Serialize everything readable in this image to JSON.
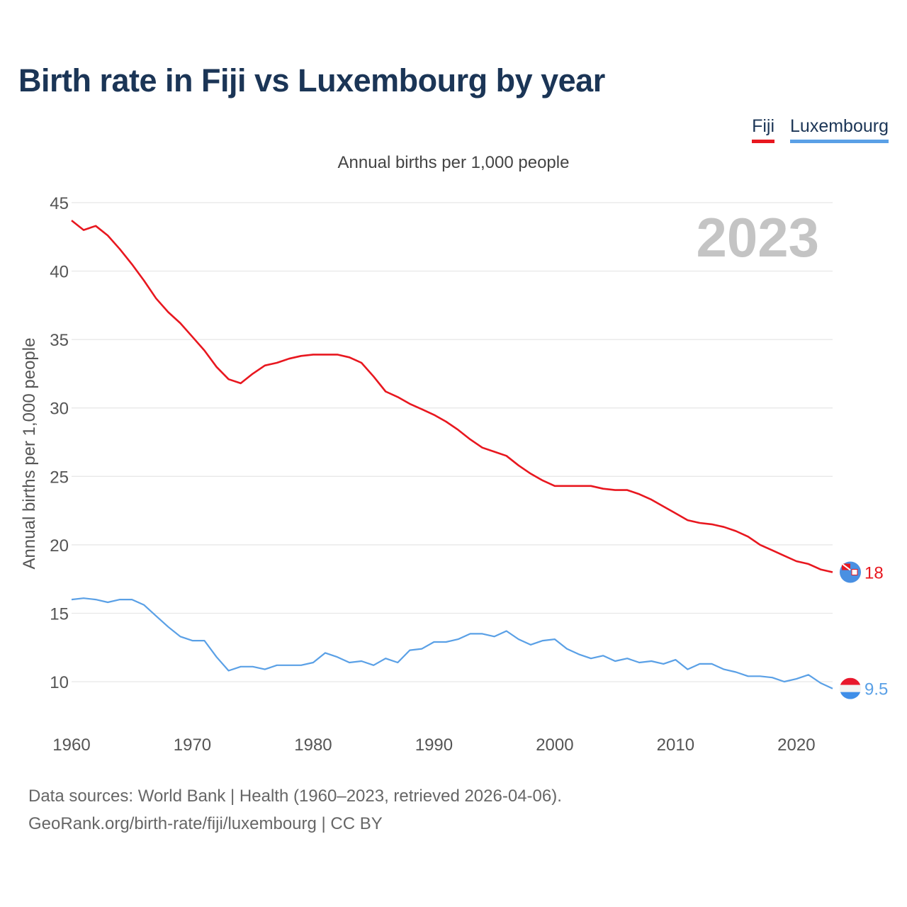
{
  "title": "Birth rate in Fiji vs Luxembourg by year",
  "subtitle": "Annual births per 1,000 people",
  "current_year": "2023",
  "legend": [
    {
      "label": "Fiji",
      "color": "#e8171f"
    },
    {
      "label": "Luxembourg",
      "color": "#5aa0e6"
    }
  ],
  "footer": {
    "line1": "Data sources: World Bank | Health (1960–2023, retrieved 2026-04-06).",
    "line2": "GeoRank.org/birth-rate/fiji/luxembourg | CC BY"
  },
  "chart_data": {
    "type": "line",
    "title": "Birth rate in Fiji vs Luxembourg by year",
    "xlabel": "",
    "ylabel": "Annual births per 1,000 people",
    "xlim": [
      1960,
      2023
    ],
    "ylim": [
      10,
      45
    ],
    "yticks": [
      10,
      15,
      20,
      25,
      30,
      35,
      40,
      45
    ],
    "xticks": [
      1960,
      1970,
      1980,
      1990,
      2000,
      2010,
      2020
    ],
    "grid": true,
    "legend_position": "top-right",
    "x_start": 1960,
    "series": [
      {
        "name": "Fiji",
        "color": "#e8171f",
        "end_label": "18",
        "values": [
          43.7,
          43.0,
          43.3,
          42.6,
          41.6,
          40.5,
          39.3,
          38.0,
          37.0,
          36.2,
          35.2,
          34.2,
          33.0,
          32.1,
          31.8,
          32.5,
          33.1,
          33.3,
          33.6,
          33.8,
          33.9,
          33.9,
          33.9,
          33.7,
          33.3,
          32.3,
          31.2,
          30.8,
          30.3,
          29.9,
          29.5,
          29.0,
          28.4,
          27.7,
          27.1,
          26.8,
          26.5,
          25.8,
          25.2,
          24.7,
          24.3,
          24.3,
          24.3,
          24.3,
          24.1,
          24.0,
          24.0,
          23.7,
          23.3,
          22.8,
          22.3,
          21.8,
          21.6,
          21.5,
          21.3,
          21.0,
          20.6,
          20.0,
          19.6,
          19.2,
          18.8,
          18.6,
          18.2,
          18.0
        ]
      },
      {
        "name": "Luxembourg",
        "color": "#5aa0e6",
        "end_label": "9.5",
        "values": [
          16.0,
          16.1,
          16.0,
          15.8,
          16.0,
          16.0,
          15.6,
          14.8,
          14.0,
          13.3,
          13.0,
          13.0,
          11.8,
          10.8,
          11.1,
          11.1,
          10.9,
          11.2,
          11.2,
          11.2,
          11.4,
          12.1,
          11.8,
          11.4,
          11.5,
          11.2,
          11.7,
          11.4,
          12.3,
          12.4,
          12.9,
          12.9,
          13.1,
          13.5,
          13.5,
          13.3,
          13.7,
          13.1,
          12.7,
          13.0,
          13.1,
          12.4,
          12.0,
          11.7,
          11.9,
          11.5,
          11.7,
          11.4,
          11.5,
          11.3,
          11.6,
          10.9,
          11.3,
          11.3,
          10.9,
          10.7,
          10.4,
          10.4,
          10.3,
          10.0,
          10.2,
          10.5,
          9.9,
          9.5
        ]
      }
    ]
  }
}
